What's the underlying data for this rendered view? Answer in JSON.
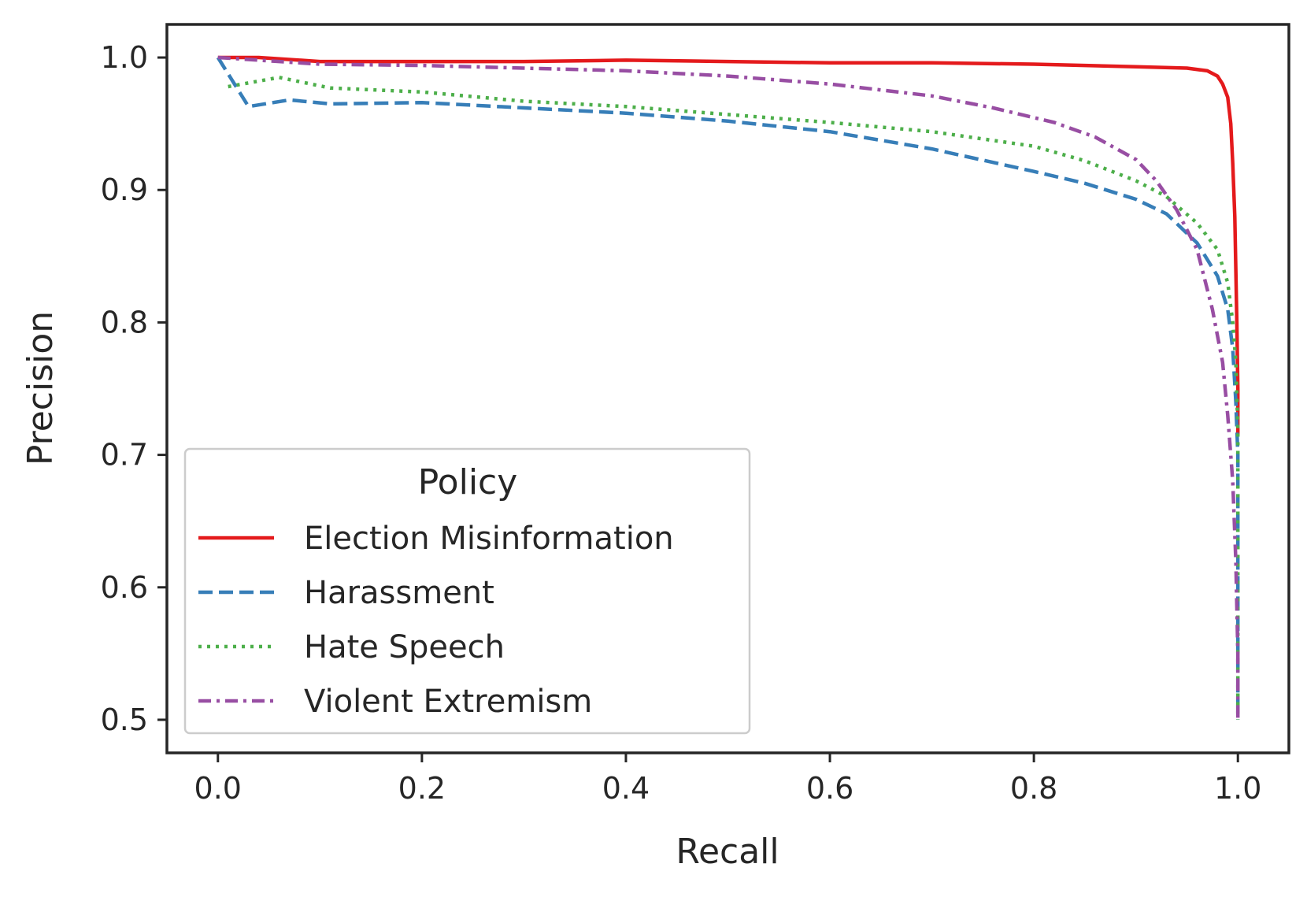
{
  "chart_data": {
    "type": "line",
    "title": "",
    "xlabel": "Recall",
    "ylabel": "Precision",
    "xlim": [
      -0.05,
      1.05
    ],
    "ylim": [
      0.475,
      1.025
    ],
    "xticks": [
      0.0,
      0.2,
      0.4,
      0.6,
      0.8,
      1.0
    ],
    "xtick_labels": [
      "0.0",
      "0.2",
      "0.4",
      "0.6",
      "0.8",
      "1.0"
    ],
    "yticks": [
      0.5,
      0.6,
      0.7,
      0.8,
      0.9,
      1.0
    ],
    "ytick_labels": [
      "0.5",
      "0.6",
      "0.7",
      "0.8",
      "0.9",
      "1.0"
    ],
    "grid": false,
    "legend": {
      "title": "Policy",
      "position": "lower-left"
    },
    "series": [
      {
        "name": "Election Misinformation",
        "color": "#e41a1c",
        "style": "solid",
        "points": [
          [
            0.0,
            1.0
          ],
          [
            0.04,
            1.0
          ],
          [
            0.1,
            0.997
          ],
          [
            0.2,
            0.997
          ],
          [
            0.3,
            0.997
          ],
          [
            0.4,
            0.998
          ],
          [
            0.5,
            0.997
          ],
          [
            0.6,
            0.996
          ],
          [
            0.7,
            0.996
          ],
          [
            0.8,
            0.995
          ],
          [
            0.9,
            0.993
          ],
          [
            0.95,
            0.992
          ],
          [
            0.97,
            0.99
          ],
          [
            0.98,
            0.986
          ],
          [
            0.985,
            0.98
          ],
          [
            0.99,
            0.97
          ],
          [
            0.993,
            0.95
          ],
          [
            0.995,
            0.92
          ],
          [
            0.997,
            0.88
          ],
          [
            0.999,
            0.8
          ],
          [
            1.0,
            0.75
          ],
          [
            1.0,
            0.715
          ]
        ]
      },
      {
        "name": "Harassment",
        "color": "#377eb8",
        "style": "dashed",
        "points": [
          [
            0.0,
            1.0
          ],
          [
            0.03,
            0.963
          ],
          [
            0.07,
            0.968
          ],
          [
            0.11,
            0.965
          ],
          [
            0.2,
            0.966
          ],
          [
            0.3,
            0.962
          ],
          [
            0.4,
            0.958
          ],
          [
            0.5,
            0.952
          ],
          [
            0.6,
            0.944
          ],
          [
            0.7,
            0.931
          ],
          [
            0.8,
            0.914
          ],
          [
            0.85,
            0.905
          ],
          [
            0.9,
            0.893
          ],
          [
            0.93,
            0.882
          ],
          [
            0.96,
            0.86
          ],
          [
            0.98,
            0.835
          ],
          [
            0.99,
            0.81
          ],
          [
            0.995,
            0.78
          ],
          [
            0.998,
            0.74
          ],
          [
            1.0,
            0.7
          ],
          [
            1.0,
            0.6
          ],
          [
            1.0,
            0.5
          ]
        ]
      },
      {
        "name": "Hate Speech",
        "color": "#4daf4a",
        "style": "dotted",
        "points": [
          [
            0.01,
            0.978
          ],
          [
            0.06,
            0.985
          ],
          [
            0.11,
            0.977
          ],
          [
            0.2,
            0.974
          ],
          [
            0.3,
            0.967
          ],
          [
            0.4,
            0.963
          ],
          [
            0.5,
            0.957
          ],
          [
            0.6,
            0.951
          ],
          [
            0.7,
            0.944
          ],
          [
            0.8,
            0.933
          ],
          [
            0.85,
            0.922
          ],
          [
            0.9,
            0.907
          ],
          [
            0.93,
            0.895
          ],
          [
            0.96,
            0.875
          ],
          [
            0.98,
            0.855
          ],
          [
            0.99,
            0.83
          ],
          [
            0.995,
            0.8
          ],
          [
            0.998,
            0.77
          ],
          [
            1.0,
            0.72
          ],
          [
            1.0,
            0.6
          ],
          [
            1.0,
            0.5
          ]
        ]
      },
      {
        "name": "Violent Extremism",
        "color": "#984ea3",
        "style": "dashdot",
        "points": [
          [
            0.0,
            1.0
          ],
          [
            0.1,
            0.995
          ],
          [
            0.2,
            0.994
          ],
          [
            0.3,
            0.992
          ],
          [
            0.4,
            0.99
          ],
          [
            0.5,
            0.986
          ],
          [
            0.6,
            0.98
          ],
          [
            0.7,
            0.971
          ],
          [
            0.76,
            0.962
          ],
          [
            0.82,
            0.951
          ],
          [
            0.86,
            0.94
          ],
          [
            0.9,
            0.923
          ],
          [
            0.92,
            0.907
          ],
          [
            0.94,
            0.885
          ],
          [
            0.96,
            0.855
          ],
          [
            0.975,
            0.81
          ],
          [
            0.985,
            0.77
          ],
          [
            0.99,
            0.73
          ],
          [
            0.995,
            0.68
          ],
          [
            0.998,
            0.62
          ],
          [
            1.0,
            0.55
          ],
          [
            1.0,
            0.5
          ]
        ]
      }
    ]
  }
}
